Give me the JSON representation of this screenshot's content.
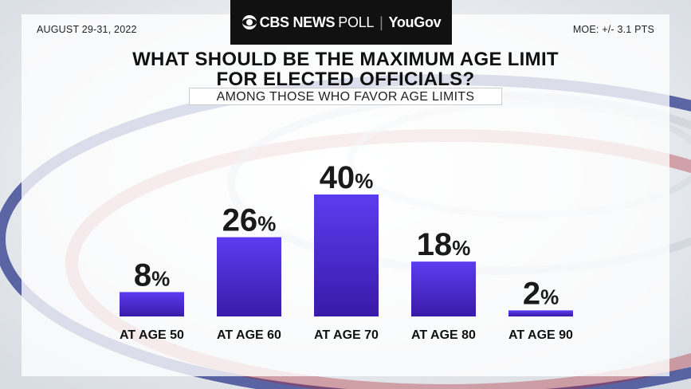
{
  "header": {
    "brand_primary": "CBS NEWS",
    "brand_secondary": "POLL",
    "partner": "YouGov",
    "date": "AUGUST 29-31, 2022",
    "moe": "MOE: +/- 3.1 PTS"
  },
  "chart_data": {
    "type": "bar",
    "title_line1": "WHAT SHOULD BE THE MAXIMUM AGE LIMIT",
    "title_line2": "FOR ELECTED OFFICIALS?",
    "subtitle": "AMONG THOSE WHO FAVOR AGE LIMITS",
    "categories": [
      "AT AGE 50",
      "AT AGE 60",
      "AT AGE 70",
      "AT AGE 80",
      "AT AGE 90"
    ],
    "values": [
      8,
      26,
      40,
      18,
      2
    ],
    "value_suffix": "%",
    "ylim": [
      0,
      40
    ],
    "grid": false,
    "bar_color_top": "#5b3df0",
    "bar_color_bottom": "#3a1aa8"
  }
}
